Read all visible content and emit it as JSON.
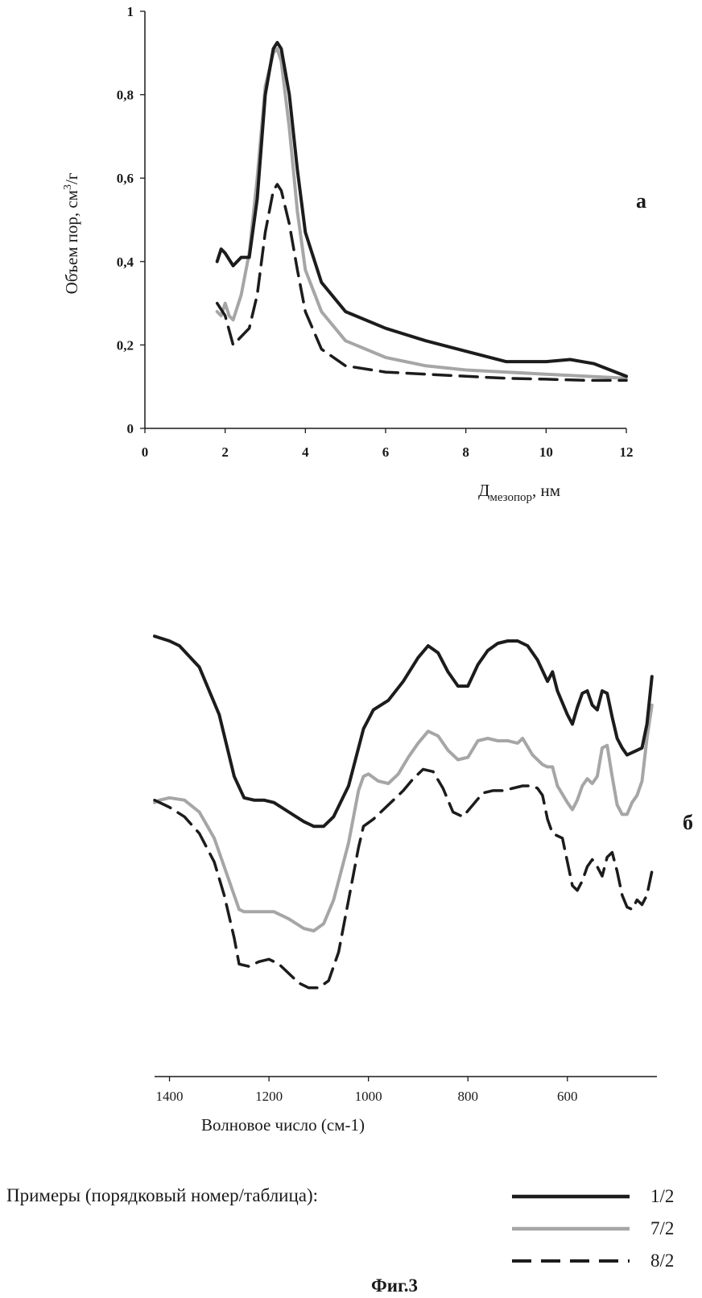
{
  "colors": {
    "series_1_2": "#1c1c1c",
    "series_7_2": "#a6a6a6",
    "series_8_2": "#1c1c1c",
    "axis": "#1a1a1a"
  },
  "panel_a": {
    "letter": "а",
    "ylabel_main": "Объем пор, см",
    "ylabel_sup": "3",
    "ylabel_tail": "/г",
    "xlabel_main": "Д",
    "xlabel_sub": "мезопор",
    "xlabel_tail": ", нм"
  },
  "panel_b": {
    "letter": "б",
    "xlabel": "Волновое число (см-1)"
  },
  "legend": {
    "title": "Примеры (порядковый номер/таблица):",
    "items": [
      {
        "label": "1/2",
        "style": "solid-dark"
      },
      {
        "label": "7/2",
        "style": "solid-gray"
      },
      {
        "label": "8/2",
        "style": "dashed-dark"
      }
    ]
  },
  "caption": "Фиг.3",
  "chart_data": [
    {
      "type": "line",
      "xlim": [
        0,
        12
      ],
      "ylim": [
        0,
        1
      ],
      "x_ticks": [
        "0",
        "2",
        "4",
        "6",
        "8",
        "10",
        "12"
      ],
      "y_ticks": [
        "0",
        "0,2",
        "0,4",
        "0,6",
        "0,8",
        "1"
      ],
      "x_tick_values": [
        0,
        2,
        4,
        6,
        8,
        10,
        12
      ],
      "y_tick_values": [
        0,
        0.2,
        0.4,
        0.6,
        0.8,
        1
      ],
      "grid": false,
      "series": [
        {
          "key": "s12",
          "x": [
            1.8,
            1.9,
            2.0,
            2.2,
            2.4,
            2.6,
            2.8,
            3.0,
            3.2,
            3.3,
            3.4,
            3.6,
            3.8,
            4.0,
            4.4,
            5.0,
            6.0,
            7.0,
            8.0,
            9.0,
            10.0,
            10.6,
            11.2,
            12.0
          ],
          "y": [
            0.4,
            0.43,
            0.42,
            0.39,
            0.41,
            0.41,
            0.55,
            0.8,
            0.91,
            0.925,
            0.91,
            0.8,
            0.62,
            0.47,
            0.35,
            0.28,
            0.24,
            0.21,
            0.185,
            0.16,
            0.16,
            0.165,
            0.155,
            0.125
          ]
        },
        {
          "key": "s72",
          "x": [
            1.8,
            1.9,
            2.0,
            2.1,
            2.2,
            2.4,
            2.6,
            2.8,
            3.0,
            3.2,
            3.3,
            3.4,
            3.6,
            3.8,
            4.0,
            4.4,
            5.0,
            6.0,
            7.0,
            8.0,
            9.0,
            10.0,
            11.0,
            12.0
          ],
          "y": [
            0.28,
            0.27,
            0.3,
            0.27,
            0.26,
            0.32,
            0.42,
            0.6,
            0.82,
            0.9,
            0.91,
            0.88,
            0.72,
            0.52,
            0.38,
            0.28,
            0.21,
            0.17,
            0.15,
            0.14,
            0.135,
            0.13,
            0.125,
            0.12
          ]
        },
        {
          "key": "s82",
          "x": [
            1.8,
            2.0,
            2.2,
            2.4,
            2.6,
            2.8,
            3.0,
            3.2,
            3.3,
            3.4,
            3.6,
            3.8,
            4.0,
            4.4,
            5.0,
            6.0,
            7.0,
            8.0,
            9.0,
            10.0,
            11.0,
            12.0
          ],
          "y": [
            0.3,
            0.27,
            0.2,
            0.22,
            0.24,
            0.32,
            0.47,
            0.57,
            0.585,
            0.57,
            0.49,
            0.38,
            0.28,
            0.19,
            0.15,
            0.135,
            0.13,
            0.125,
            0.12,
            0.118,
            0.115,
            0.115
          ]
        }
      ]
    },
    {
      "type": "line",
      "xlim": [
        1430,
        420
      ],
      "x_ticks": [
        "1400",
        "1200",
        "1000",
        "800",
        "600"
      ],
      "x_tick_values": [
        1400,
        1200,
        1000,
        800,
        600
      ],
      "ylim": [
        0,
        1
      ],
      "y_axis_shown": false,
      "grid": false,
      "series": [
        {
          "key": "s12",
          "x": [
            1430,
            1400,
            1380,
            1340,
            1300,
            1270,
            1250,
            1230,
            1210,
            1190,
            1160,
            1130,
            1110,
            1090,
            1070,
            1040,
            1010,
            990,
            960,
            930,
            900,
            880,
            860,
            840,
            820,
            800,
            780,
            760,
            740,
            720,
            700,
            680,
            660,
            640,
            630,
            620,
            600,
            590,
            580,
            570,
            560,
            550,
            540,
            530,
            520,
            510,
            500,
            490,
            480,
            470,
            460,
            450,
            440,
            430
          ],
          "y": [
            0.915,
            0.905,
            0.895,
            0.85,
            0.75,
            0.62,
            0.575,
            0.57,
            0.57,
            0.565,
            0.545,
            0.525,
            0.515,
            0.515,
            0.535,
            0.6,
            0.72,
            0.76,
            0.78,
            0.82,
            0.87,
            0.895,
            0.88,
            0.84,
            0.81,
            0.81,
            0.855,
            0.885,
            0.9,
            0.905,
            0.905,
            0.895,
            0.865,
            0.82,
            0.84,
            0.8,
            0.75,
            0.73,
            0.765,
            0.795,
            0.8,
            0.77,
            0.76,
            0.8,
            0.795,
            0.745,
            0.7,
            0.68,
            0.665,
            0.67,
            0.675,
            0.68,
            0.73,
            0.83
          ]
        },
        {
          "key": "s72",
          "x": [
            1430,
            1420,
            1400,
            1370,
            1340,
            1310,
            1280,
            1260,
            1250,
            1220,
            1190,
            1160,
            1130,
            1110,
            1090,
            1070,
            1040,
            1020,
            1010,
            1000,
            980,
            960,
            940,
            920,
            900,
            880,
            860,
            840,
            820,
            800,
            780,
            760,
            740,
            720,
            700,
            690,
            670,
            650,
            640,
            630,
            620,
            600,
            590,
            580,
            570,
            560,
            550,
            540,
            530,
            520,
            510,
            500,
            490,
            480,
            470,
            460,
            450,
            440,
            430
          ],
          "y": [
            0.565,
            0.57,
            0.575,
            0.57,
            0.545,
            0.49,
            0.4,
            0.34,
            0.335,
            0.335,
            0.335,
            0.32,
            0.3,
            0.295,
            0.31,
            0.36,
            0.48,
            0.59,
            0.62,
            0.625,
            0.61,
            0.605,
            0.625,
            0.66,
            0.69,
            0.715,
            0.705,
            0.675,
            0.655,
            0.66,
            0.695,
            0.7,
            0.695,
            0.695,
            0.69,
            0.7,
            0.665,
            0.645,
            0.64,
            0.64,
            0.6,
            0.565,
            0.55,
            0.57,
            0.6,
            0.615,
            0.605,
            0.62,
            0.68,
            0.685,
            0.62,
            0.56,
            0.54,
            0.54,
            0.565,
            0.58,
            0.61,
            0.7,
            0.77
          ]
        },
        {
          "key": "s82",
          "x": [
            1430,
            1400,
            1370,
            1340,
            1310,
            1290,
            1270,
            1260,
            1240,
            1220,
            1200,
            1180,
            1160,
            1140,
            1120,
            1100,
            1080,
            1060,
            1040,
            1020,
            1010,
            990,
            970,
            950,
            930,
            910,
            890,
            870,
            850,
            830,
            810,
            790,
            770,
            750,
            730,
            710,
            690,
            670,
            660,
            650,
            640,
            630,
            620,
            610,
            600,
            590,
            580,
            570,
            560,
            550,
            540,
            530,
            520,
            510,
            500,
            490,
            480,
            470,
            460,
            450,
            440,
            430
          ],
          "y": [
            0.57,
            0.555,
            0.535,
            0.5,
            0.44,
            0.37,
            0.28,
            0.225,
            0.22,
            0.23,
            0.235,
            0.225,
            0.205,
            0.185,
            0.175,
            0.175,
            0.19,
            0.25,
            0.36,
            0.47,
            0.515,
            0.53,
            0.55,
            0.57,
            0.59,
            0.615,
            0.635,
            0.63,
            0.595,
            0.545,
            0.535,
            0.56,
            0.585,
            0.59,
            0.59,
            0.595,
            0.6,
            0.6,
            0.595,
            0.58,
            0.53,
            0.5,
            0.495,
            0.49,
            0.44,
            0.39,
            0.38,
            0.4,
            0.43,
            0.445,
            0.43,
            0.41,
            0.45,
            0.46,
            0.42,
            0.37,
            0.345,
            0.34,
            0.36,
            0.35,
            0.37,
            0.42
          ]
        }
      ]
    }
  ]
}
